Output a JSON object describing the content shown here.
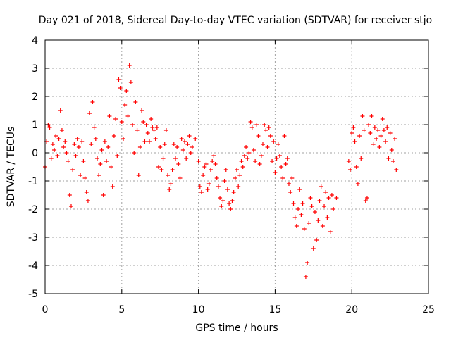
{
  "chart_data": {
    "type": "scatter",
    "title": "Day 021 of 2018, Sidereal Day-to-day VTEC variation (SDTVAR) for receiver stjo",
    "xlabel": "GPS time / hours",
    "ylabel": "SDTVAR / TECUs",
    "xlim": [
      0,
      25
    ],
    "ylim": [
      -5,
      4
    ],
    "xticks": [
      0,
      5,
      10,
      15,
      20,
      25
    ],
    "yticks": [
      -5,
      -4,
      -3,
      -2,
      -1,
      0,
      1,
      2,
      3,
      4
    ],
    "grid": true,
    "marker": "+",
    "color": "#ff0000",
    "series": [
      {
        "name": "SDTVAR",
        "points": [
          [
            0.0,
            -0.5
          ],
          [
            0.1,
            0.4
          ],
          [
            0.2,
            1.0
          ],
          [
            0.3,
            0.9
          ],
          [
            0.4,
            -0.2
          ],
          [
            0.5,
            0.3
          ],
          [
            0.6,
            0.1
          ],
          [
            0.7,
            0.6
          ],
          [
            0.8,
            -0.1
          ],
          [
            0.9,
            0.5
          ],
          [
            1.0,
            1.5
          ],
          [
            1.1,
            0.8
          ],
          [
            1.2,
            0.2
          ],
          [
            1.3,
            0.4
          ],
          [
            1.4,
            0.0
          ],
          [
            1.5,
            -0.3
          ],
          [
            1.6,
            -1.5
          ],
          [
            1.7,
            -1.9
          ],
          [
            1.8,
            -0.6
          ],
          [
            1.9,
            0.3
          ],
          [
            2.0,
            -0.1
          ],
          [
            2.1,
            0.5
          ],
          [
            2.2,
            0.2
          ],
          [
            2.3,
            -0.8
          ],
          [
            2.4,
            0.4
          ],
          [
            2.5,
            -0.3
          ],
          [
            2.6,
            -0.9
          ],
          [
            2.7,
            -1.4
          ],
          [
            2.8,
            -1.7
          ],
          [
            2.9,
            1.4
          ],
          [
            3.0,
            0.3
          ],
          [
            3.1,
            1.8
          ],
          [
            3.2,
            0.9
          ],
          [
            3.3,
            0.5
          ],
          [
            3.4,
            -0.2
          ],
          [
            3.5,
            -0.8
          ],
          [
            3.6,
            -0.4
          ],
          [
            3.7,
            0.1
          ],
          [
            3.8,
            -1.5
          ],
          [
            3.9,
            0.4
          ],
          [
            4.0,
            -0.3
          ],
          [
            4.1,
            0.2
          ],
          [
            4.2,
            1.3
          ],
          [
            4.3,
            -0.5
          ],
          [
            4.4,
            -1.2
          ],
          [
            4.5,
            0.6
          ],
          [
            4.6,
            1.2
          ],
          [
            4.7,
            -0.1
          ],
          [
            4.8,
            2.6
          ],
          [
            4.9,
            2.3
          ],
          [
            5.0,
            1.1
          ],
          [
            5.1,
            0.5
          ],
          [
            5.2,
            1.7
          ],
          [
            5.3,
            2.2
          ],
          [
            5.4,
            1.3
          ],
          [
            5.5,
            3.1
          ],
          [
            5.6,
            2.5
          ],
          [
            5.7,
            1.0
          ],
          [
            5.8,
            0.0
          ],
          [
            5.9,
            1.8
          ],
          [
            6.0,
            0.8
          ],
          [
            6.1,
            -0.8
          ],
          [
            6.2,
            0.2
          ],
          [
            6.3,
            1.5
          ],
          [
            6.4,
            1.1
          ],
          [
            6.5,
            0.4
          ],
          [
            6.6,
            1.0
          ],
          [
            6.7,
            0.7
          ],
          [
            6.8,
            0.4
          ],
          [
            6.9,
            1.2
          ],
          [
            7.0,
            0.9
          ],
          [
            7.1,
            0.8
          ],
          [
            7.2,
            0.5
          ],
          [
            7.3,
            0.9
          ],
          [
            7.4,
            -0.5
          ],
          [
            7.5,
            0.2
          ],
          [
            7.6,
            -0.6
          ],
          [
            7.7,
            -0.2
          ],
          [
            7.8,
            0.3
          ],
          [
            7.9,
            0.8
          ],
          [
            8.0,
            -0.8
          ],
          [
            8.1,
            -1.3
          ],
          [
            8.2,
            -1.1
          ],
          [
            8.3,
            -0.6
          ],
          [
            8.4,
            0.3
          ],
          [
            8.5,
            -0.2
          ],
          [
            8.6,
            0.2
          ],
          [
            8.7,
            -0.4
          ],
          [
            8.8,
            -0.9
          ],
          [
            8.9,
            0.5
          ],
          [
            9.0,
            0.1
          ],
          [
            9.1,
            0.4
          ],
          [
            9.2,
            -0.2
          ],
          [
            9.3,
            0.3
          ],
          [
            9.4,
            0.6
          ],
          [
            9.5,
            0.0
          ],
          [
            9.6,
            0.2
          ],
          [
            9.8,
            0.5
          ],
          [
            10.0,
            -0.3
          ],
          [
            10.1,
            -1.2
          ],
          [
            10.2,
            -1.4
          ],
          [
            10.3,
            -0.8
          ],
          [
            10.4,
            -0.5
          ],
          [
            10.5,
            -0.4
          ],
          [
            10.6,
            -1.3
          ],
          [
            10.7,
            -1.1
          ],
          [
            10.8,
            -0.6
          ],
          [
            10.9,
            -0.3
          ],
          [
            11.0,
            -0.1
          ],
          [
            11.1,
            -0.4
          ],
          [
            11.2,
            -0.9
          ],
          [
            11.3,
            -1.2
          ],
          [
            11.4,
            -1.6
          ],
          [
            11.5,
            -1.9
          ],
          [
            11.6,
            -1.7
          ],
          [
            11.7,
            -1.0
          ],
          [
            11.8,
            -0.6
          ],
          [
            11.9,
            -1.3
          ],
          [
            12.0,
            -1.8
          ],
          [
            12.1,
            -2.0
          ],
          [
            12.2,
            -1.7
          ],
          [
            12.3,
            -1.4
          ],
          [
            12.4,
            -0.9
          ],
          [
            12.5,
            -0.6
          ],
          [
            12.6,
            -1.2
          ],
          [
            12.7,
            -0.8
          ],
          [
            12.8,
            -0.3
          ],
          [
            12.9,
            -0.5
          ],
          [
            13.0,
            -0.1
          ],
          [
            13.1,
            0.2
          ],
          [
            13.2,
            -0.2
          ],
          [
            13.3,
            0.0
          ],
          [
            13.4,
            1.1
          ],
          [
            13.5,
            0.9
          ],
          [
            13.6,
            0.1
          ],
          [
            13.7,
            -0.3
          ],
          [
            13.8,
            1.0
          ],
          [
            13.9,
            0.6
          ],
          [
            14.0,
            -0.4
          ],
          [
            14.1,
            -0.1
          ],
          [
            14.2,
            0.3
          ],
          [
            14.3,
            1.0
          ],
          [
            14.4,
            0.8
          ],
          [
            14.5,
            0.2
          ],
          [
            14.6,
            0.9
          ],
          [
            14.7,
            0.6
          ],
          [
            14.8,
            -0.3
          ],
          [
            14.9,
            0.4
          ],
          [
            15.0,
            -0.7
          ],
          [
            15.1,
            -0.2
          ],
          [
            15.2,
            0.3
          ],
          [
            15.3,
            -0.1
          ],
          [
            15.4,
            -0.5
          ],
          [
            15.5,
            -0.9
          ],
          [
            15.6,
            0.6
          ],
          [
            15.7,
            -0.4
          ],
          [
            15.8,
            -0.2
          ],
          [
            15.9,
            -1.1
          ],
          [
            16.0,
            -1.4
          ],
          [
            16.1,
            -0.9
          ],
          [
            16.2,
            -1.8
          ],
          [
            16.3,
            -2.3
          ],
          [
            16.4,
            -2.6
          ],
          [
            16.5,
            -2.0
          ],
          [
            16.6,
            -1.3
          ],
          [
            16.7,
            -2.2
          ],
          [
            16.8,
            -1.8
          ],
          [
            16.9,
            -2.7
          ],
          [
            17.0,
            -4.4
          ],
          [
            17.1,
            -3.9
          ],
          [
            17.2,
            -2.5
          ],
          [
            17.3,
            -1.6
          ],
          [
            17.4,
            -1.9
          ],
          [
            17.5,
            -3.4
          ],
          [
            17.6,
            -2.1
          ],
          [
            17.7,
            -3.1
          ],
          [
            17.8,
            -2.4
          ],
          [
            17.9,
            -1.7
          ],
          [
            18.0,
            -1.2
          ],
          [
            18.1,
            -2.6
          ],
          [
            18.2,
            -1.9
          ],
          [
            18.3,
            -1.4
          ],
          [
            18.4,
            -2.3
          ],
          [
            18.5,
            -1.6
          ],
          [
            18.6,
            -2.8
          ],
          [
            18.7,
            -1.5
          ],
          [
            18.8,
            -2.0
          ],
          [
            19.0,
            -1.6
          ],
          [
            19.8,
            -0.3
          ],
          [
            19.9,
            -0.6
          ],
          [
            20.0,
            0.7
          ],
          [
            20.1,
            0.9
          ],
          [
            20.2,
            0.4
          ],
          [
            20.3,
            -0.5
          ],
          [
            20.4,
            -1.1
          ],
          [
            20.5,
            0.6
          ],
          [
            20.6,
            -0.2
          ],
          [
            20.7,
            1.3
          ],
          [
            20.8,
            0.8
          ],
          [
            20.9,
            -1.7
          ],
          [
            21.0,
            -1.6
          ],
          [
            21.1,
            1.0
          ],
          [
            21.2,
            0.7
          ],
          [
            21.3,
            1.3
          ],
          [
            21.4,
            0.3
          ],
          [
            21.5,
            0.9
          ],
          [
            21.6,
            0.5
          ],
          [
            21.7,
            0.8
          ],
          [
            21.8,
            0.2
          ],
          [
            21.9,
            0.6
          ],
          [
            22.0,
            1.2
          ],
          [
            22.1,
            0.8
          ],
          [
            22.2,
            0.4
          ],
          [
            22.3,
            0.9
          ],
          [
            22.4,
            -0.2
          ],
          [
            22.5,
            0.7
          ],
          [
            22.6,
            0.1
          ],
          [
            22.7,
            -0.3
          ],
          [
            22.8,
            0.5
          ],
          [
            22.9,
            -0.6
          ]
        ]
      }
    ]
  }
}
